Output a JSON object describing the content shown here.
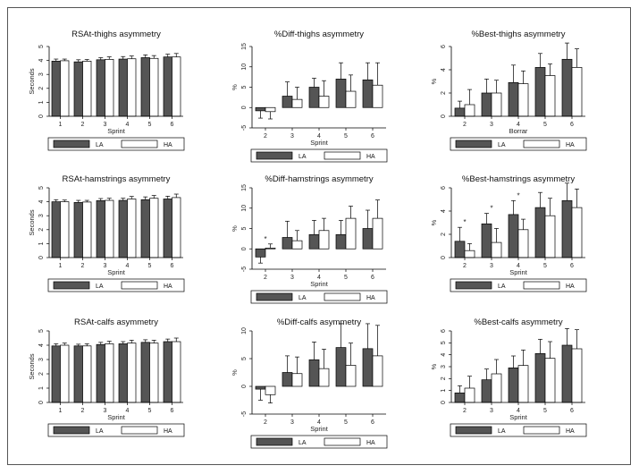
{
  "colors": {
    "LA": "#555555",
    "HA": "#ffffff",
    "frame": "#555555",
    "axis": "#000000"
  },
  "chart_data": [
    {
      "type": "bar",
      "title": "RSAt-thighs asymmetry",
      "xlabel": "Sprint",
      "ylabel": "Seconds",
      "categories": [
        "1",
        "2",
        "3",
        "4",
        "5",
        "6"
      ],
      "ylim": [
        0,
        5
      ],
      "yticks": [
        "0",
        "1",
        "2",
        "3",
        "4",
        "5"
      ],
      "series": [
        {
          "name": "LA",
          "values": [
            3.95,
            3.9,
            4.05,
            4.1,
            4.2,
            4.25
          ],
          "err": [
            0.15,
            0.15,
            0.15,
            0.18,
            0.2,
            0.2
          ]
        },
        {
          "name": "HA",
          "values": [
            3.98,
            3.95,
            4.08,
            4.12,
            4.15,
            4.25
          ],
          "err": [
            0.12,
            0.12,
            0.18,
            0.2,
            0.2,
            0.25
          ]
        }
      ],
      "annotations": []
    },
    {
      "type": "bar",
      "title": "%Diff-thighs asymmetry",
      "xlabel": "Sprint",
      "ylabel": "%",
      "categories": [
        "2",
        "3",
        "4",
        "5",
        "6"
      ],
      "ylim": [
        -5,
        15
      ],
      "yticks": [
        "-5",
        "0",
        "5",
        "10",
        "15"
      ],
      "series": [
        {
          "name": "LA",
          "values": [
            -0.8,
            2.8,
            5.0,
            7.0,
            6.8
          ],
          "err": [
            1.8,
            3.5,
            2.2,
            4.0,
            4.2
          ]
        },
        {
          "name": "HA",
          "values": [
            -1.0,
            2.0,
            2.8,
            4.0,
            5.5
          ],
          "err": [
            1.8,
            3.0,
            3.8,
            4.0,
            5.5
          ]
        }
      ],
      "annotations": []
    },
    {
      "type": "bar",
      "title": "%Best-thighs asymmetry",
      "xlabel": "Borrar",
      "ylabel": "%",
      "categories": [
        "2",
        "3",
        "4",
        "5",
        "6"
      ],
      "ylim": [
        0,
        6
      ],
      "yticks": [
        "0",
        "2",
        "4",
        "6"
      ],
      "series": [
        {
          "name": "LA",
          "values": [
            0.7,
            2.0,
            2.9,
            4.2,
            4.9
          ],
          "err": [
            0.6,
            1.2,
            1.5,
            1.2,
            1.4
          ]
        },
        {
          "name": "HA",
          "values": [
            1.0,
            2.0,
            2.8,
            3.5,
            4.2
          ],
          "err": [
            1.3,
            1.1,
            1.1,
            1.0,
            1.6
          ]
        }
      ],
      "annotations": []
    },
    {
      "type": "bar",
      "title": "RSAt-hamstrings asymmetry",
      "xlabel": "Sprint",
      "ylabel": "Seconds",
      "categories": [
        "1",
        "2",
        "3",
        "4",
        "5",
        "6"
      ],
      "ylim": [
        0,
        5
      ],
      "yticks": [
        "0",
        "1",
        "2",
        "3",
        "4",
        "5"
      ],
      "series": [
        {
          "name": "LA",
          "values": [
            4.0,
            3.95,
            4.08,
            4.1,
            4.15,
            4.2
          ],
          "err": [
            0.15,
            0.15,
            0.15,
            0.15,
            0.2,
            0.2
          ]
        },
        {
          "name": "HA",
          "values": [
            4.0,
            3.98,
            4.1,
            4.2,
            4.25,
            4.3
          ],
          "err": [
            0.12,
            0.12,
            0.15,
            0.18,
            0.2,
            0.25
          ]
        }
      ],
      "annotations": []
    },
    {
      "type": "bar",
      "title": "%Diff-hamstrings asymmetry",
      "xlabel": "Sprint",
      "ylabel": "%",
      "categories": [
        "2",
        "3",
        "4",
        "5",
        "6"
      ],
      "ylim": [
        -5,
        15
      ],
      "yticks": [
        "-5",
        "0",
        "5",
        "10",
        "15"
      ],
      "series": [
        {
          "name": "LA",
          "values": [
            -2.0,
            2.8,
            3.5,
            3.5,
            5.0
          ],
          "err": [
            1.5,
            4.0,
            3.5,
            3.5,
            4.5
          ]
        },
        {
          "name": "HA",
          "values": [
            0.2,
            2.0,
            4.5,
            7.5,
            7.5
          ],
          "err": [
            1.0,
            2.5,
            3.0,
            3.0,
            4.5
          ]
        }
      ],
      "annotations": [
        {
          "category": "2",
          "text": "*"
        }
      ]
    },
    {
      "type": "bar",
      "title": "%Best-hamstrings asymmetry",
      "xlabel": "Sprint",
      "ylabel": "%",
      "categories": [
        "2",
        "3",
        "4",
        "5",
        "6"
      ],
      "ylim": [
        0,
        6
      ],
      "yticks": [
        "0",
        "2",
        "4",
        "6"
      ],
      "series": [
        {
          "name": "LA",
          "values": [
            1.4,
            2.9,
            3.7,
            4.3,
            4.9
          ],
          "err": [
            1.2,
            0.9,
            1.2,
            1.3,
            1.5
          ]
        },
        {
          "name": "HA",
          "values": [
            0.6,
            1.3,
            2.4,
            3.6,
            4.3
          ],
          "err": [
            0.6,
            1.2,
            0.9,
            1.5,
            1.6
          ]
        }
      ],
      "annotations": [
        {
          "category": "2",
          "text": "*"
        },
        {
          "category": "3",
          "text": "*"
        },
        {
          "category": "4",
          "text": "*"
        }
      ]
    },
    {
      "type": "bar",
      "title": "RSAt-calfs asymmetry",
      "xlabel": "Sprint",
      "ylabel": "Seconds",
      "categories": [
        "1",
        "2",
        "3",
        "4",
        "5",
        "6"
      ],
      "ylim": [
        0,
        5
      ],
      "yticks": [
        "0",
        "1",
        "2",
        "3",
        "4",
        "5"
      ],
      "series": [
        {
          "name": "LA",
          "values": [
            3.95,
            3.95,
            4.05,
            4.1,
            4.2,
            4.25
          ],
          "err": [
            0.15,
            0.12,
            0.15,
            0.15,
            0.18,
            0.18
          ]
        },
        {
          "name": "HA",
          "values": [
            4.0,
            3.95,
            4.1,
            4.15,
            4.15,
            4.25
          ],
          "err": [
            0.15,
            0.15,
            0.18,
            0.2,
            0.2,
            0.25
          ]
        }
      ],
      "annotations": []
    },
    {
      "type": "bar",
      "title": "%Diff-calfs asymmetry",
      "xlabel": "Sprint",
      "ylabel": "%",
      "categories": [
        "2",
        "3",
        "4",
        "5",
        "6"
      ],
      "ylim": [
        -5,
        10
      ],
      "yticks": [
        "-5",
        "0",
        "5",
        "10"
      ],
      "series": [
        {
          "name": "LA",
          "values": [
            -0.5,
            2.5,
            4.8,
            7.0,
            6.8
          ],
          "err": [
            2.0,
            3.0,
            3.2,
            4.3,
            4.5
          ]
        },
        {
          "name": "HA",
          "values": [
            -1.5,
            2.3,
            3.2,
            3.8,
            5.5
          ],
          "err": [
            1.5,
            3.0,
            3.5,
            4.0,
            5.5
          ]
        }
      ],
      "annotations": []
    },
    {
      "type": "bar",
      "title": "%Best-calfs asymmetry",
      "xlabel": "Sprint",
      "ylabel": "%",
      "categories": [
        "2",
        "3",
        "4",
        "5",
        "6"
      ],
      "ylim": [
        0,
        6
      ],
      "yticks": [
        "0",
        "1",
        "2",
        "3",
        "4",
        "5",
        "6"
      ],
      "series": [
        {
          "name": "LA",
          "values": [
            0.8,
            1.9,
            2.9,
            4.1,
            4.8
          ],
          "err": [
            0.6,
            0.9,
            1.0,
            1.2,
            1.4
          ]
        },
        {
          "name": "HA",
          "values": [
            1.2,
            2.4,
            3.1,
            3.7,
            4.5
          ],
          "err": [
            1.0,
            1.2,
            1.3,
            1.4,
            1.6
          ]
        }
      ],
      "annotations": []
    }
  ]
}
